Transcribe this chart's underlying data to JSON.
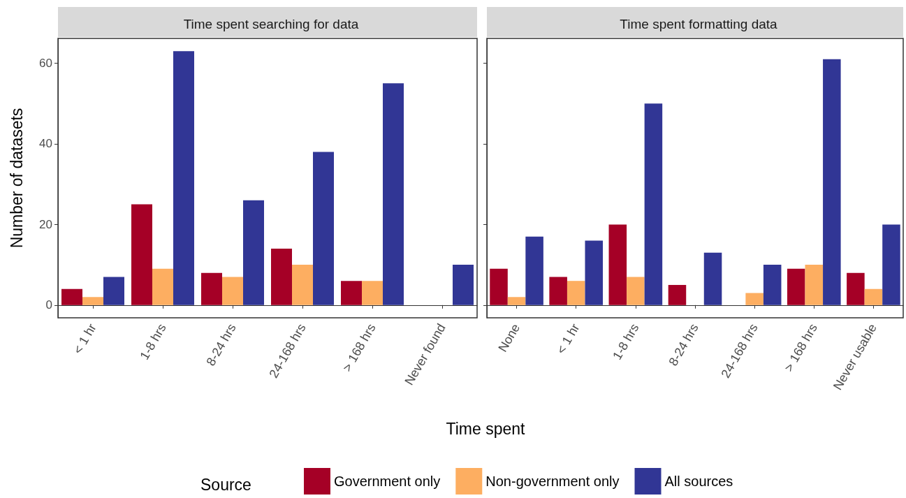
{
  "chart_data": [
    {
      "type": "bar",
      "title": "Time spent searching for data",
      "ylabel": "Number of datasets",
      "xlabel": "Time spent",
      "categories": [
        "< 1 hr",
        "1-8 hrs",
        "8-24 hrs",
        "24-168 hrs",
        "> 168 hrs",
        "Never found"
      ],
      "ylim": [
        -3.15,
        66.15
      ],
      "yticks": [
        0,
        20,
        40,
        60
      ],
      "series": [
        {
          "color": "#a50026",
          "values": [
            4,
            25,
            8,
            14,
            6,
            null
          ]
        },
        {
          "color": "#fdae61",
          "values": [
            2,
            9,
            7,
            10,
            6,
            null
          ]
        },
        {
          "color": "#313695",
          "values": [
            7,
            63,
            26,
            38,
            55,
            10
          ]
        }
      ]
    },
    {
      "type": "bar",
      "title": "Time spent formatting data",
      "categories": [
        "None",
        "< 1 hr",
        "1-8 hrs",
        "8-24 hrs",
        "24-168 hrs",
        "> 168 hrs",
        "Never usable"
      ],
      "ylim": [
        -3.15,
        66.15
      ],
      "yticks": [
        0,
        20,
        40,
        60
      ],
      "tick_labels": "x",
      "legend": "bottom",
      "legend_title": "Source",
      "series": [
        {
          "name": "Government only",
          "color": "#a50026",
          "values": [
            9,
            7,
            20,
            5,
            null,
            9,
            8
          ]
        },
        {
          "name": "Non-government only",
          "color": "#fdae61",
          "values": [
            2,
            6,
            7,
            null,
            3,
            10,
            4
          ]
        },
        {
          "name": "All sources",
          "color": "#313695",
          "values": [
            17,
            16,
            50,
            13,
            10,
            61,
            20
          ]
        }
      ]
    }
  ]
}
